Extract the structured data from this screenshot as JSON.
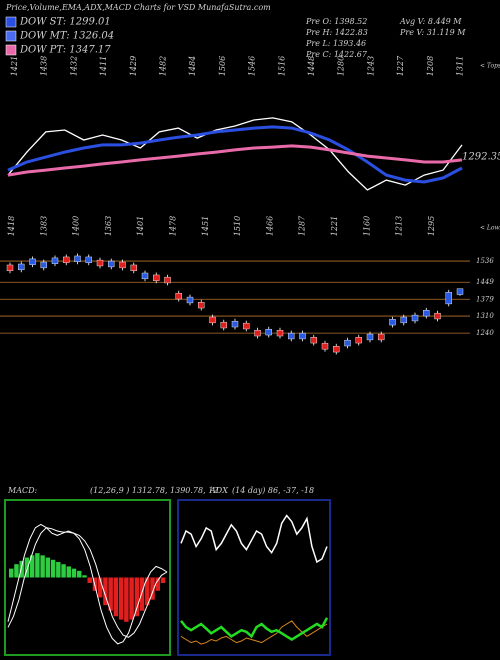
{
  "header": {
    "title": "Price,Volume,EMA,ADX,MACD Charts for VSD MunafaSutra.com",
    "legend": [
      {
        "label": "DOW ST: 1299.01",
        "color": "#2b4fe0"
      },
      {
        "label": "DOW MT: 1326.04",
        "color": "#4a6cf0"
      },
      {
        "label": "DOW PT: 1347.17",
        "color": "#e86aa8"
      }
    ],
    "stats": [
      "Pre O: 1398.52",
      "Pre H: 1422.83",
      "Pre L: 1393.46",
      "Pre C: 1422.67",
      "Avg V: 8.449 M",
      "Pre V: 31.119 M"
    ]
  },
  "chart_data": [
    {
      "type": "line",
      "ylim": [
        1150,
        1600
      ],
      "series": [
        {
          "color": "#ffffff",
          "values": [
            1230,
            1304,
            1369,
            1375,
            1343,
            1359,
            1343,
            1317,
            1369,
            1381,
            1349,
            1375,
            1388,
            1407,
            1414,
            1401,
            1359,
            1311,
            1240,
            1182,
            1214,
            1198,
            1230,
            1246,
            1327
          ]
        },
        {
          "color": "#2b4fe0",
          "values": [
            1246,
            1272,
            1288,
            1304,
            1317,
            1327,
            1327,
            1333,
            1343,
            1352,
            1359,
            1369,
            1375,
            1381,
            1385,
            1381,
            1365,
            1343,
            1311,
            1272,
            1230,
            1214,
            1208,
            1221,
            1253
          ]
        },
        {
          "color": "#e86aa8",
          "values": [
            1230,
            1240,
            1246,
            1253,
            1259,
            1266,
            1272,
            1279,
            1285,
            1291,
            1298,
            1304,
            1311,
            1317,
            1320,
            1324,
            1320,
            1311,
            1301,
            1291,
            1285,
            1279,
            1272,
            1272,
            1279
          ]
        }
      ],
      "tops": [
        "1421",
        "1438",
        "1432",
        "1411",
        "1429",
        "1482",
        "1484",
        "1506",
        "1546",
        "1516",
        "1448",
        "1280",
        "1243",
        "1227",
        "1208",
        "1311"
      ],
      "lows": [
        "1418",
        "1383",
        "1400",
        "1363",
        "1401",
        "1478",
        "1451",
        "1510",
        "1466",
        "1287",
        "1221",
        "1160",
        "1213",
        "1295"
      ],
      "tops_caption": "< Tops",
      "lows_caption": "< Lows",
      "last_label": "1292.35"
    },
    {
      "type": "candlestick",
      "ylim": [
        1150,
        1600
      ],
      "yticks": [
        1240,
        1310,
        1379,
        1449,
        1536
      ],
      "grid": true,
      "grid_color": "#b8742c",
      "up_color": "#2a5be0",
      "down_color": "#e0201f",
      "open": [
        1520,
        1500,
        1521,
        1508,
        1525,
        1553,
        1533,
        1529,
        1540,
        1512,
        1532,
        1520,
        1463,
        1479,
        1470,
        1404,
        1364,
        1367,
        1306,
        1285,
        1265,
        1281,
        1252,
        1232,
        1252,
        1216,
        1216,
        1223,
        1198,
        1186,
        1187,
        1223,
        1212,
        1236,
        1273,
        1282,
        1290,
        1310,
        1322,
        1360,
        1398.52
      ],
      "high": [
        1530,
        1534,
        1555,
        1542,
        1559,
        1563,
        1567,
        1563,
        1550,
        1546,
        1542,
        1530,
        1497,
        1489,
        1480,
        1414,
        1398,
        1377,
        1316,
        1295,
        1299,
        1291,
        1262,
        1266,
        1262,
        1250,
        1250,
        1233,
        1208,
        1196,
        1221,
        1233,
        1246,
        1246,
        1307,
        1316,
        1324,
        1344,
        1332,
        1418,
        1422.83
      ],
      "low": [
        1486,
        1490,
        1511,
        1498,
        1515,
        1519,
        1523,
        1519,
        1506,
        1502,
        1498,
        1486,
        1453,
        1445,
        1436,
        1370,
        1354,
        1333,
        1272,
        1251,
        1255,
        1247,
        1218,
        1222,
        1218,
        1206,
        1206,
        1189,
        1164,
        1152,
        1177,
        1189,
        1202,
        1202,
        1263,
        1272,
        1280,
        1300,
        1288,
        1350,
        1393.46
      ],
      "close": [
        1496,
        1524,
        1545,
        1532,
        1549,
        1529,
        1557,
        1553,
        1516,
        1536,
        1508,
        1496,
        1487,
        1455,
        1446,
        1380,
        1388,
        1343,
        1282,
        1261,
        1289,
        1257,
        1228,
        1256,
        1228,
        1240,
        1240,
        1199,
        1174,
        1162,
        1211,
        1199,
        1236,
        1212,
        1297,
        1306,
        1314,
        1334,
        1298,
        1408,
        1422.67
      ]
    },
    {
      "type": "macd",
      "title": "MACD:",
      "params": "(12,26,9 ) 1312.78, 1390.78, 12",
      "ylim": [
        -70,
        70
      ],
      "frame_color": "#1f9a1f",
      "pos_color": "#2ecc40",
      "neg_color": "#e21f1f",
      "histogram": [
        8,
        12,
        15,
        18,
        20,
        22,
        20,
        18,
        16,
        14,
        12,
        10,
        8,
        6,
        2,
        -5,
        -12,
        -18,
        -25,
        -30,
        -35,
        -38,
        -40,
        -38,
        -35,
        -30,
        -25,
        -20,
        -12,
        -5
      ],
      "series": [
        {
          "color": "#ffffff",
          "values": [
            -40,
            -20,
            0,
            20,
            35,
            45,
            48,
            45,
            40,
            38,
            40,
            42,
            40,
            35,
            25,
            10,
            -10,
            -30,
            -45,
            -55,
            -60,
            -58,
            -50,
            -35,
            -20,
            -5,
            5,
            10,
            8,
            5
          ]
        },
        {
          "color": "#ffffff",
          "values": [
            -45,
            -35,
            -20,
            0,
            15,
            30,
            40,
            45,
            44,
            42,
            41,
            41,
            40,
            38,
            33,
            25,
            12,
            -5,
            -20,
            -35,
            -45,
            -52,
            -54,
            -50,
            -42,
            -30,
            -18,
            -5,
            2,
            5
          ]
        }
      ]
    },
    {
      "type": "adx",
      "title": "ADX",
      "params": "(14 day) 86, -37, -18",
      "ylim": [
        0,
        100
      ],
      "frame_color": "#1a2a8a",
      "series": [
        {
          "color": "#ffffff",
          "values": [
            72,
            80,
            78,
            70,
            75,
            82,
            80,
            68,
            72,
            78,
            84,
            80,
            72,
            68,
            74,
            80,
            78,
            70,
            66,
            72,
            85,
            90,
            86,
            78,
            82,
            88,
            70,
            60,
            62,
            70
          ]
        },
        {
          "color": "#d9861c",
          "values": [
            12,
            10,
            8,
            9,
            7,
            8,
            10,
            9,
            11,
            12,
            10,
            8,
            9,
            11,
            10,
            9,
            8,
            10,
            12,
            14,
            18,
            20,
            22,
            18,
            15,
            12,
            14,
            16,
            18,
            20
          ]
        },
        {
          "color": "#22dd22",
          "values": [
            22,
            18,
            16,
            18,
            20,
            17,
            14,
            16,
            18,
            15,
            12,
            14,
            16,
            15,
            12,
            18,
            20,
            17,
            15,
            16,
            14,
            12,
            10,
            12,
            14,
            16,
            18,
            20,
            18,
            24
          ]
        }
      ]
    }
  ]
}
